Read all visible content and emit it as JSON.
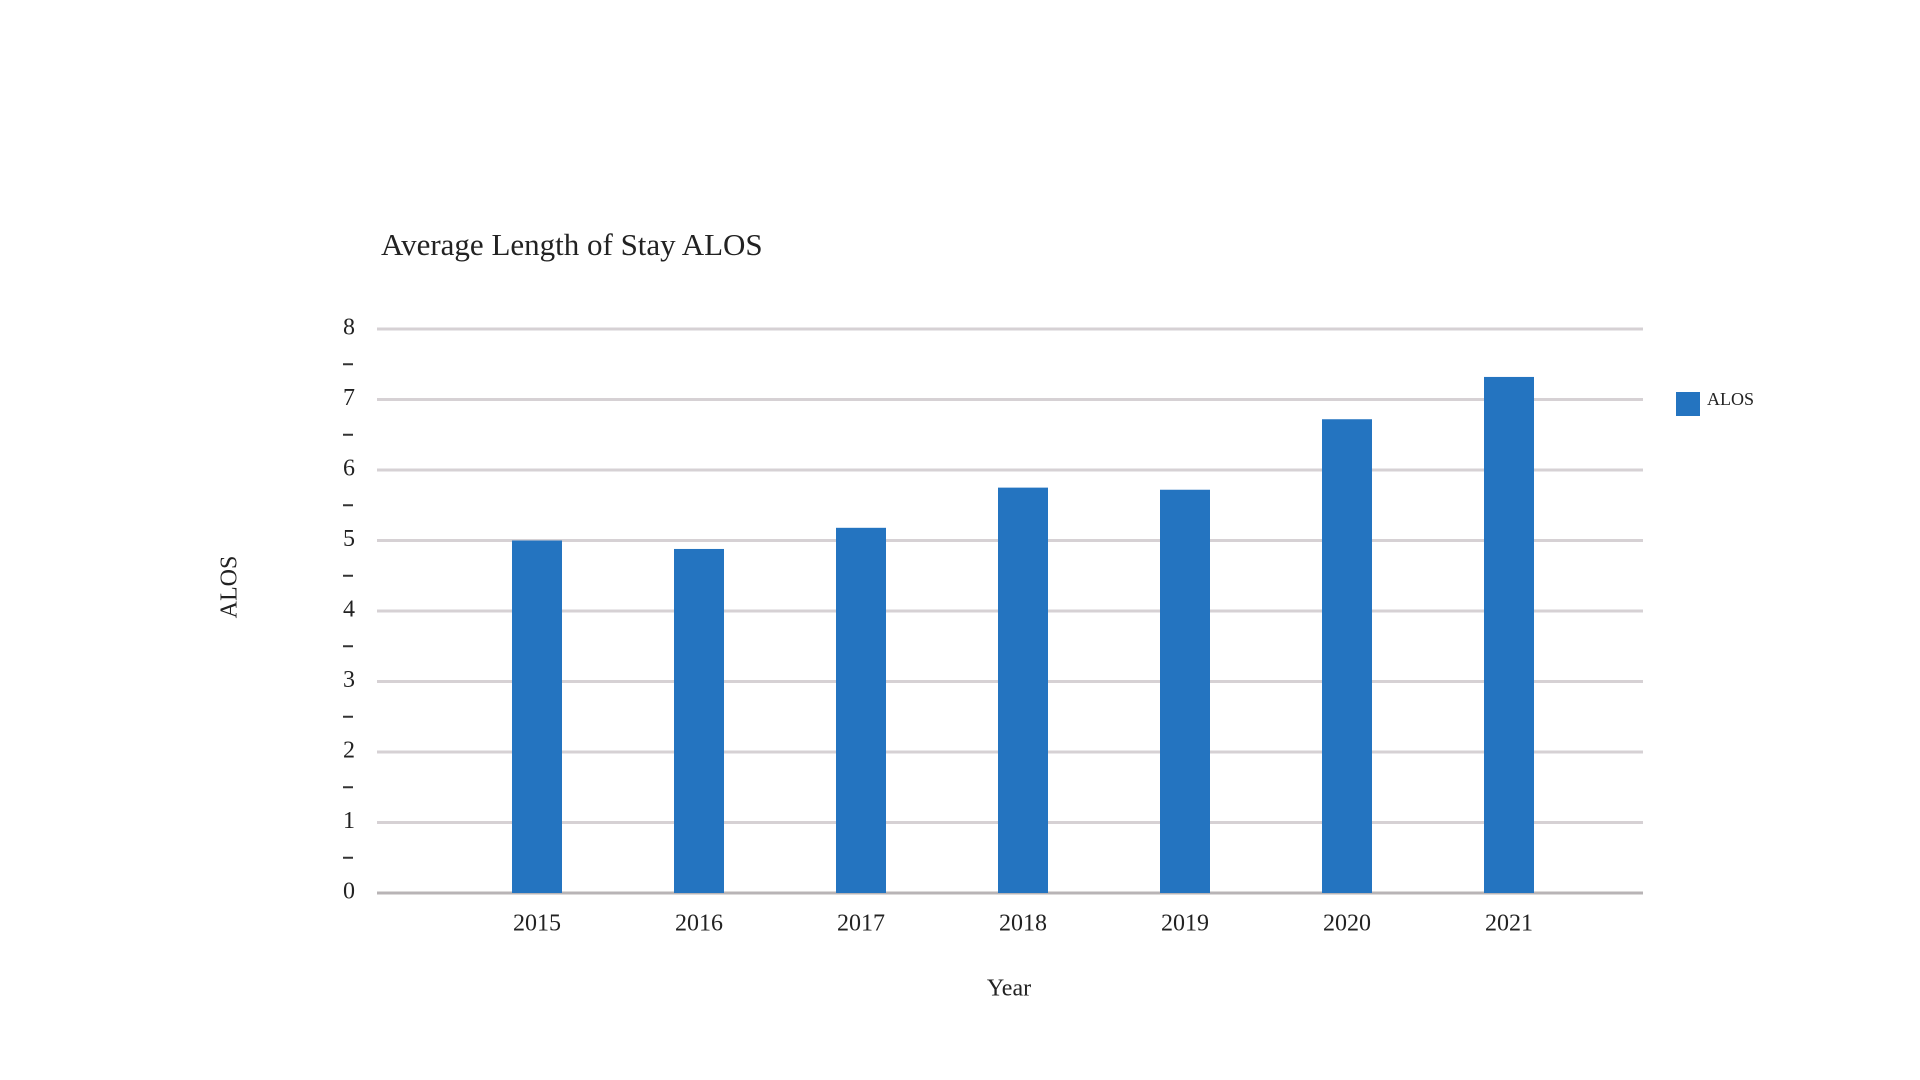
{
  "chart_data": {
    "type": "bar",
    "title": "Average Length of Stay ALOS",
    "x_label": "Year",
    "y_label": "ALOS",
    "categories": [
      "2015",
      "2016",
      "2017",
      "2018",
      "2019",
      "2020",
      "2021"
    ],
    "series": [
      {
        "name": "ALOS",
        "color": "#2474c0",
        "values": [
          5.0,
          4.88,
          5.18,
          5.75,
          5.72,
          6.72,
          7.32
        ]
      }
    ],
    "ylim": [
      0,
      8
    ],
    "yticks": [
      0,
      1,
      2,
      3,
      4,
      5,
      6,
      7,
      8
    ],
    "minor_yticks": [
      0.5,
      1.5,
      2.5,
      3.5,
      4.5,
      5.5,
      6.5,
      7.5
    ],
    "grid": true,
    "legend": "right"
  }
}
